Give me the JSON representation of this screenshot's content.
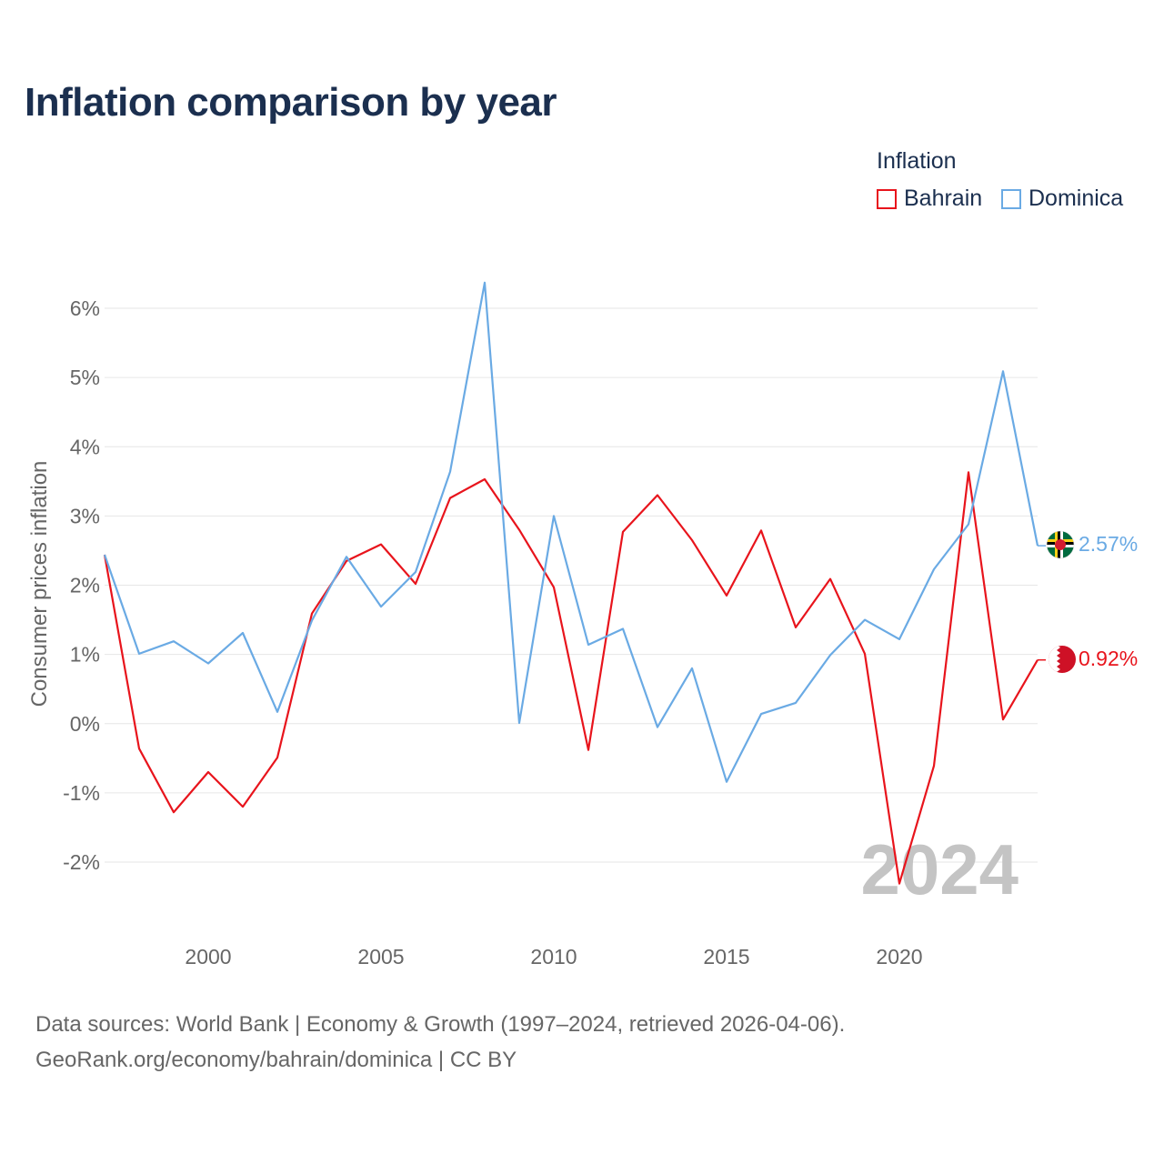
{
  "header": {
    "title": "Inflation comparison by year"
  },
  "legend": {
    "title": "Inflation",
    "items": [
      {
        "label": "Bahrain",
        "color": "#e8141c"
      },
      {
        "label": "Dominica",
        "color": "#6aaae4"
      }
    ]
  },
  "chart_data": {
    "type": "line",
    "title": "Inflation comparison by year",
    "ylabel": "Consumer prices inflation",
    "xlabel": "",
    "xlim": [
      1997,
      2024
    ],
    "ylim": [
      -2.8,
      6.8
    ],
    "y_ticks": [
      -2,
      -1,
      0,
      1,
      2,
      3,
      4,
      5,
      6
    ],
    "y_tick_labels": [
      "-2%",
      "-1%",
      "0%",
      "1%",
      "2%",
      "3%",
      "4%",
      "5%",
      "6%"
    ],
    "x_ticks": [
      2000,
      2005,
      2010,
      2015,
      2020
    ],
    "x_tick_labels": [
      "2000",
      "2005",
      "2010",
      "2015",
      "2020"
    ],
    "grid": "horizontal",
    "year_watermark": "2024",
    "x": [
      1997,
      1998,
      1999,
      2000,
      2001,
      2002,
      2003,
      2004,
      2005,
      2006,
      2007,
      2008,
      2009,
      2010,
      2011,
      2012,
      2013,
      2014,
      2015,
      2016,
      2017,
      2018,
      2019,
      2020,
      2021,
      2022,
      2023,
      2024
    ],
    "series": [
      {
        "name": "Dominica",
        "color": "#6aaae4",
        "end_label": "2.57%",
        "values": [
          2.44,
          1.01,
          1.19,
          0.87,
          1.31,
          0.17,
          1.49,
          2.41,
          1.69,
          2.19,
          3.64,
          6.37,
          0.01,
          3.0,
          1.14,
          1.37,
          -0.05,
          0.8,
          -0.84,
          0.14,
          0.3,
          0.99,
          1.5,
          1.22,
          2.23,
          2.88,
          5.09,
          2.57
        ]
      },
      {
        "name": "Bahrain",
        "color": "#e8141c",
        "end_label": "0.92%",
        "values": [
          2.44,
          -0.36,
          -1.28,
          -0.7,
          -1.2,
          -0.49,
          1.59,
          2.35,
          2.59,
          2.02,
          3.26,
          3.53,
          2.8,
          1.97,
          -0.38,
          2.77,
          3.3,
          2.65,
          1.85,
          2.79,
          1.39,
          2.09,
          1.01,
          -2.31,
          -0.61,
          3.63,
          0.06,
          0.92
        ]
      }
    ]
  },
  "footer": {
    "line1": "Data sources: World Bank | Economy & Growth (1997–2024, retrieved 2026-04-06).",
    "line2": "GeoRank.org/economy/bahrain/dominica | CC BY"
  }
}
